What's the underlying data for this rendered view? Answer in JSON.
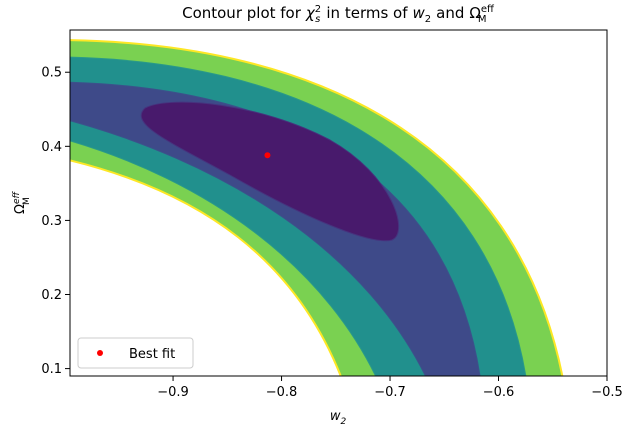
{
  "chart_data": {
    "type": "contour",
    "title": [
      "Contour plot for",
      "χ",
      "2",
      "s",
      "in terms of",
      "w",
      "2",
      "and",
      "Ω",
      "eff",
      "M"
    ],
    "x_label": [
      "w",
      "2"
    ],
    "y_label": [
      "Ω",
      "eff",
      "M"
    ],
    "xlim": [
      -0.995,
      -0.5
    ],
    "ylim": [
      0.09,
      0.557
    ],
    "xticks": [
      {
        "value": -0.9,
        "label": "−0.9"
      },
      {
        "value": -0.8,
        "label": "−0.8"
      },
      {
        "value": -0.7,
        "label": "−0.7"
      },
      {
        "value": -0.6,
        "label": "−0.6"
      },
      {
        "value": -0.5,
        "label": "−0.5"
      }
    ],
    "yticks": [
      0.1,
      0.2,
      0.3,
      0.4,
      0.5
    ],
    "series": [
      {
        "name": "Best fit",
        "color": "#ff0000",
        "x": [
          -0.813
        ],
        "values": [
          0.388
        ]
      }
    ],
    "legend": "lower left"
  }
}
